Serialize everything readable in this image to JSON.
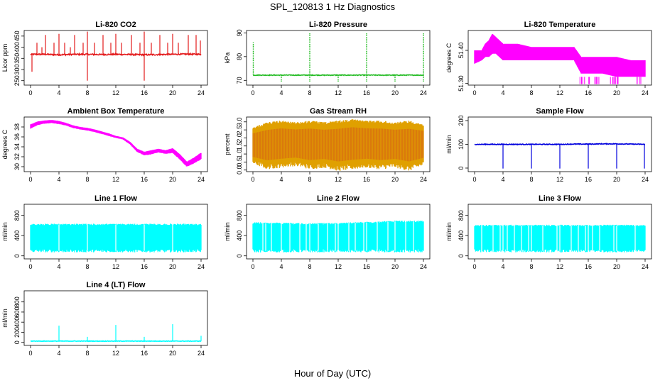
{
  "figure": {
    "title": "SPL_120813  1 Hz Diagnostics",
    "xlabel": "Hour of Day (UTC)"
  },
  "colors": {
    "red": "#e31a1c",
    "green": "#22bb22",
    "magenta": "#ff00ff",
    "orange": "#e0a000",
    "blue": "#0000dd",
    "cyan": "#00ffff"
  },
  "chart_data": [
    {
      "type": "line",
      "title": "Li-820 CO2",
      "ylabel": "Licor ppm",
      "xlim": [
        0,
        24
      ],
      "ylim": [
        230,
        475
      ],
      "xticks": [
        "0",
        "4",
        "8",
        "12",
        "16",
        "20",
        "24"
      ],
      "yticks": [
        "250",
        "300",
        "350",
        "400",
        "450"
      ],
      "color": "red",
      "series": [
        {
          "name": "CO2",
          "pattern": "spiky",
          "baseline": 368,
          "band": 6,
          "x": [
            0,
            2,
            4,
            6,
            8,
            10,
            12,
            14,
            16,
            18,
            20,
            22,
            24
          ],
          "y": [
            368,
            368,
            366,
            368,
            368,
            367,
            368,
            367,
            366,
            367,
            368,
            369,
            368
          ],
          "spikes": [
            [
              0.2,
              290
            ],
            [
              0.9,
              420
            ],
            [
              1.6,
              400
            ],
            [
              2.1,
              455
            ],
            [
              3.3,
              420
            ],
            [
              4.0,
              460
            ],
            [
              4.8,
              420
            ],
            [
              5.6,
              400
            ],
            [
              6.2,
              455
            ],
            [
              7.4,
              420
            ],
            [
              8.0,
              470
            ],
            [
              8.0,
              250
            ],
            [
              9.0,
              420
            ],
            [
              10.2,
              455
            ],
            [
              11.3,
              420
            ],
            [
              12.0,
              460
            ],
            [
              12.8,
              420
            ],
            [
              14.2,
              455
            ],
            [
              15.4,
              420
            ],
            [
              16.0,
              470
            ],
            [
              16.0,
              250
            ],
            [
              17.0,
              420
            ],
            [
              18.2,
              455
            ],
            [
              19.3,
              420
            ],
            [
              20.0,
              460
            ],
            [
              20.8,
              420
            ],
            [
              22.2,
              455
            ],
            [
              23.3,
              455
            ],
            [
              23.9,
              430
            ]
          ]
        }
      ]
    },
    {
      "type": "line",
      "title": "Li-820 Pressure",
      "ylabel": "kPa",
      "xlim": [
        0,
        24
      ],
      "ylim": [
        68,
        91
      ],
      "xticks": [
        "0",
        "4",
        "8",
        "12",
        "16",
        "20",
        "24"
      ],
      "yticks": [
        "70",
        "80",
        "90"
      ],
      "color": "green",
      "series": [
        {
          "name": "Pressure",
          "pattern": "spiky",
          "baseline": 72.2,
          "band": 0.3,
          "x": [
            0,
            2,
            4,
            6,
            8,
            10,
            12,
            14,
            16,
            18,
            20,
            22,
            24
          ],
          "y": [
            72.2,
            72.2,
            72.2,
            72.2,
            72.2,
            72.2,
            72.2,
            72.2,
            72.2,
            72.2,
            72.2,
            72.2,
            72.2
          ],
          "spikes": [
            [
              0.05,
              86
            ],
            [
              4.0,
              69.5
            ],
            [
              8.0,
              90
            ],
            [
              8.0,
              69.5
            ],
            [
              12.0,
              69.5
            ],
            [
              16.0,
              90
            ],
            [
              16.0,
              69.5
            ],
            [
              20.0,
              69.5
            ],
            [
              24.0,
              90
            ],
            [
              24.0,
              69.5
            ]
          ]
        }
      ]
    },
    {
      "type": "line",
      "title": "Li-820 Temperature",
      "ylabel": "degrees C",
      "xlim": [
        0,
        24
      ],
      "ylim": [
        51.295,
        51.46
      ],
      "xticks": [
        "0",
        "4",
        "8",
        "12",
        "16",
        "20",
        "24"
      ],
      "yticks": [
        "51.30",
        "51.40"
      ],
      "color": "magenta",
      "series": [
        {
          "name": "Temperature",
          "pattern": "step",
          "x": [
            0,
            1,
            1.5,
            2,
            2.5,
            3,
            3.5,
            4,
            5,
            6,
            8,
            10,
            12,
            14,
            15,
            16,
            18,
            20,
            22,
            24
          ],
          "low": [
            51.36,
            51.37,
            51.38,
            51.38,
            51.39,
            51.39,
            51.38,
            51.37,
            51.37,
            51.37,
            51.37,
            51.37,
            51.37,
            51.37,
            51.33,
            51.33,
            51.33,
            51.32,
            51.32,
            51.32
          ],
          "high": [
            51.4,
            51.4,
            51.42,
            51.43,
            51.45,
            51.44,
            51.43,
            51.42,
            51.42,
            51.42,
            51.41,
            51.41,
            51.41,
            51.41,
            51.38,
            51.38,
            51.38,
            51.38,
            51.37,
            51.37
          ]
        }
      ]
    },
    {
      "type": "area",
      "title": "Ambient Box Temperature",
      "ylabel": "degrees C",
      "xlim": [
        0,
        24
      ],
      "ylim": [
        29,
        40
      ],
      "xticks": [
        "0",
        "4",
        "8",
        "12",
        "16",
        "20",
        "24"
      ],
      "yticks": [
        "30",
        "32",
        "34",
        "36",
        "38"
      ],
      "color": "magenta",
      "series": [
        {
          "name": "Ambient",
          "x": [
            0,
            1,
            2,
            3,
            4,
            5,
            6,
            7,
            8,
            9,
            10,
            11,
            12,
            13,
            14,
            15,
            16,
            17,
            18,
            19,
            20,
            21,
            22,
            23,
            24
          ],
          "low": [
            37.7,
            38.4,
            38.7,
            38.8,
            38.6,
            38.3,
            37.8,
            37.5,
            37.3,
            37.0,
            36.6,
            36.2,
            35.8,
            35.5,
            34.5,
            33.0,
            32.3,
            32.5,
            32.9,
            32.6,
            32.8,
            31.5,
            30.0,
            30.7,
            31.5
          ],
          "high": [
            38.5,
            39.1,
            39.3,
            39.4,
            39.2,
            38.8,
            38.3,
            38.0,
            37.8,
            37.5,
            37.1,
            36.7,
            36.2,
            35.9,
            35.0,
            33.6,
            33.0,
            33.3,
            33.6,
            33.3,
            33.7,
            32.5,
            31.0,
            31.8,
            32.8
          ]
        }
      ]
    },
    {
      "type": "area",
      "title": "Gas Stream RH",
      "ylabel": "percent",
      "xlim": [
        0,
        24
      ],
      "ylim": [
        -0.1,
        3.3
      ],
      "xticks": [
        "0",
        "4",
        "8",
        "12",
        "16",
        "20",
        "24"
      ],
      "yticks": [
        "0.0",
        "0.5",
        "1.0",
        "1.5",
        "2.0",
        "2.5",
        "3.0"
      ],
      "color": "orange",
      "series": [
        {
          "name": "RH",
          "x": [
            0,
            2,
            4,
            6,
            8,
            10,
            12,
            14,
            16,
            18,
            20,
            22,
            24
          ],
          "low": [
            0.5,
            0.2,
            0.3,
            0.4,
            0.2,
            0.3,
            0.1,
            0.2,
            0.3,
            0.2,
            0.3,
            0.1,
            0.4
          ],
          "high": [
            2.6,
            2.9,
            3.0,
            2.9,
            3.0,
            2.9,
            3.0,
            3.1,
            3.0,
            3.0,
            2.9,
            3.0,
            2.8
          ]
        }
      ]
    },
    {
      "type": "line",
      "title": "Sample Flow",
      "ylabel": "ml/min",
      "xlim": [
        0,
        24
      ],
      "ylim": [
        -15,
        215
      ],
      "xticks": [
        "0",
        "4",
        "8",
        "12",
        "16",
        "20",
        "24"
      ],
      "yticks": [
        "0",
        "100",
        "200"
      ],
      "color": "blue",
      "series": [
        {
          "name": "Sample Flow",
          "pattern": "spiky",
          "baseline": 100,
          "band": 3,
          "x": [
            0,
            2,
            4,
            6,
            8,
            10,
            12,
            14,
            16,
            18,
            20,
            22,
            24
          ],
          "y": [
            100,
            100,
            100,
            100,
            100,
            100,
            100,
            101,
            101,
            102,
            102,
            101,
            100
          ],
          "spikes": [
            [
              4.0,
              -2
            ],
            [
              8.0,
              -2
            ],
            [
              12.0,
              -2
            ],
            [
              16.0,
              -2
            ],
            [
              20.0,
              -2
            ],
            [
              23.9,
              -2
            ]
          ]
        }
      ]
    },
    {
      "type": "area",
      "title": "Line 1 Flow",
      "ylabel": "ml/min",
      "xlim": [
        0,
        24
      ],
      "ylim": [
        -60,
        1020
      ],
      "xticks": [
        "0",
        "4",
        "8",
        "12",
        "16",
        "20",
        "24"
      ],
      "yticks": [
        "0",
        "400",
        "800"
      ],
      "color": "cyan",
      "series": [
        {
          "name": "Line 1",
          "x": [
            0,
            4,
            8,
            12,
            16,
            20,
            24
          ],
          "low": [
            100,
            100,
            100,
            100,
            100,
            100,
            100
          ],
          "high": [
            620,
            620,
            620,
            620,
            620,
            620,
            620
          ],
          "gaps": [
            4,
            8,
            12,
            16,
            20
          ]
        }
      ]
    },
    {
      "type": "area",
      "title": "Line 2 Flow",
      "ylabel": "ml/min",
      "xlim": [
        0,
        24
      ],
      "ylim": [
        -60,
        1020
      ],
      "xticks": [
        "0",
        "4",
        "8",
        "12",
        "16",
        "20",
        "24"
      ],
      "yticks": [
        "0",
        "400",
        "800"
      ],
      "color": "cyan",
      "series": [
        {
          "name": "Line 2",
          "x": [
            0,
            4,
            8,
            12,
            16,
            20,
            24
          ],
          "low": [
            100,
            100,
            100,
            100,
            100,
            100,
            100
          ],
          "high": [
            650,
            640,
            630,
            640,
            660,
            680,
            680
          ],
          "gaps": [
            1.4,
            1.8,
            2.6,
            4.0,
            5.2,
            6.6,
            7.5,
            8.0,
            9.2,
            10.5,
            11.6,
            12.0,
            13.5,
            14.4,
            15.6,
            16.0,
            17.5,
            19.0,
            20.0,
            21.5,
            22.6
          ]
        }
      ]
    },
    {
      "type": "area",
      "title": "Line 3 Flow",
      "ylabel": "ml/min",
      "xlim": [
        0,
        24
      ],
      "ylim": [
        -60,
        1020
      ],
      "xticks": [
        "0",
        "4",
        "8",
        "12",
        "16",
        "20",
        "24"
      ],
      "yticks": [
        "0",
        "400",
        "800"
      ],
      "color": "cyan",
      "series": [
        {
          "name": "Line 3",
          "x": [
            0,
            4,
            8,
            12,
            16,
            20,
            24
          ],
          "low": [
            100,
            100,
            100,
            100,
            100,
            100,
            100
          ],
          "high": [
            600,
            600,
            600,
            600,
            600,
            600,
            600
          ],
          "gaps": [
            1.0,
            2.6,
            3.6,
            4.0,
            4.6,
            5.6,
            6.6,
            7.6,
            8.0,
            9.6,
            11.6,
            12.0,
            13.6,
            14.6,
            15.6,
            16.0,
            16.6,
            17.6,
            19.6,
            20.0,
            22.6
          ]
        }
      ]
    },
    {
      "type": "line",
      "title": "Line 4 (LT) Flow",
      "ylabel": "ml/min",
      "xlim": [
        0,
        24
      ],
      "ylim": [
        -60,
        1020
      ],
      "xticks": [
        "0",
        "4",
        "8",
        "12",
        "16",
        "20",
        "24"
      ],
      "yticks": [
        "0",
        "200",
        "400",
        "600",
        "800"
      ],
      "color": "cyan",
      "series": [
        {
          "name": "Line 4",
          "pattern": "spiky",
          "baseline": 25,
          "band": 10,
          "x": [
            0,
            4,
            8,
            12,
            16,
            20,
            24
          ],
          "y": [
            25,
            25,
            25,
            25,
            25,
            25,
            25
          ],
          "spikes": [
            [
              4.0,
              330
            ],
            [
              8.0,
              110
            ],
            [
              12.0,
              345
            ],
            [
              16.0,
              110
            ],
            [
              20.0,
              360
            ],
            [
              24.0,
              130
            ]
          ]
        }
      ]
    }
  ]
}
